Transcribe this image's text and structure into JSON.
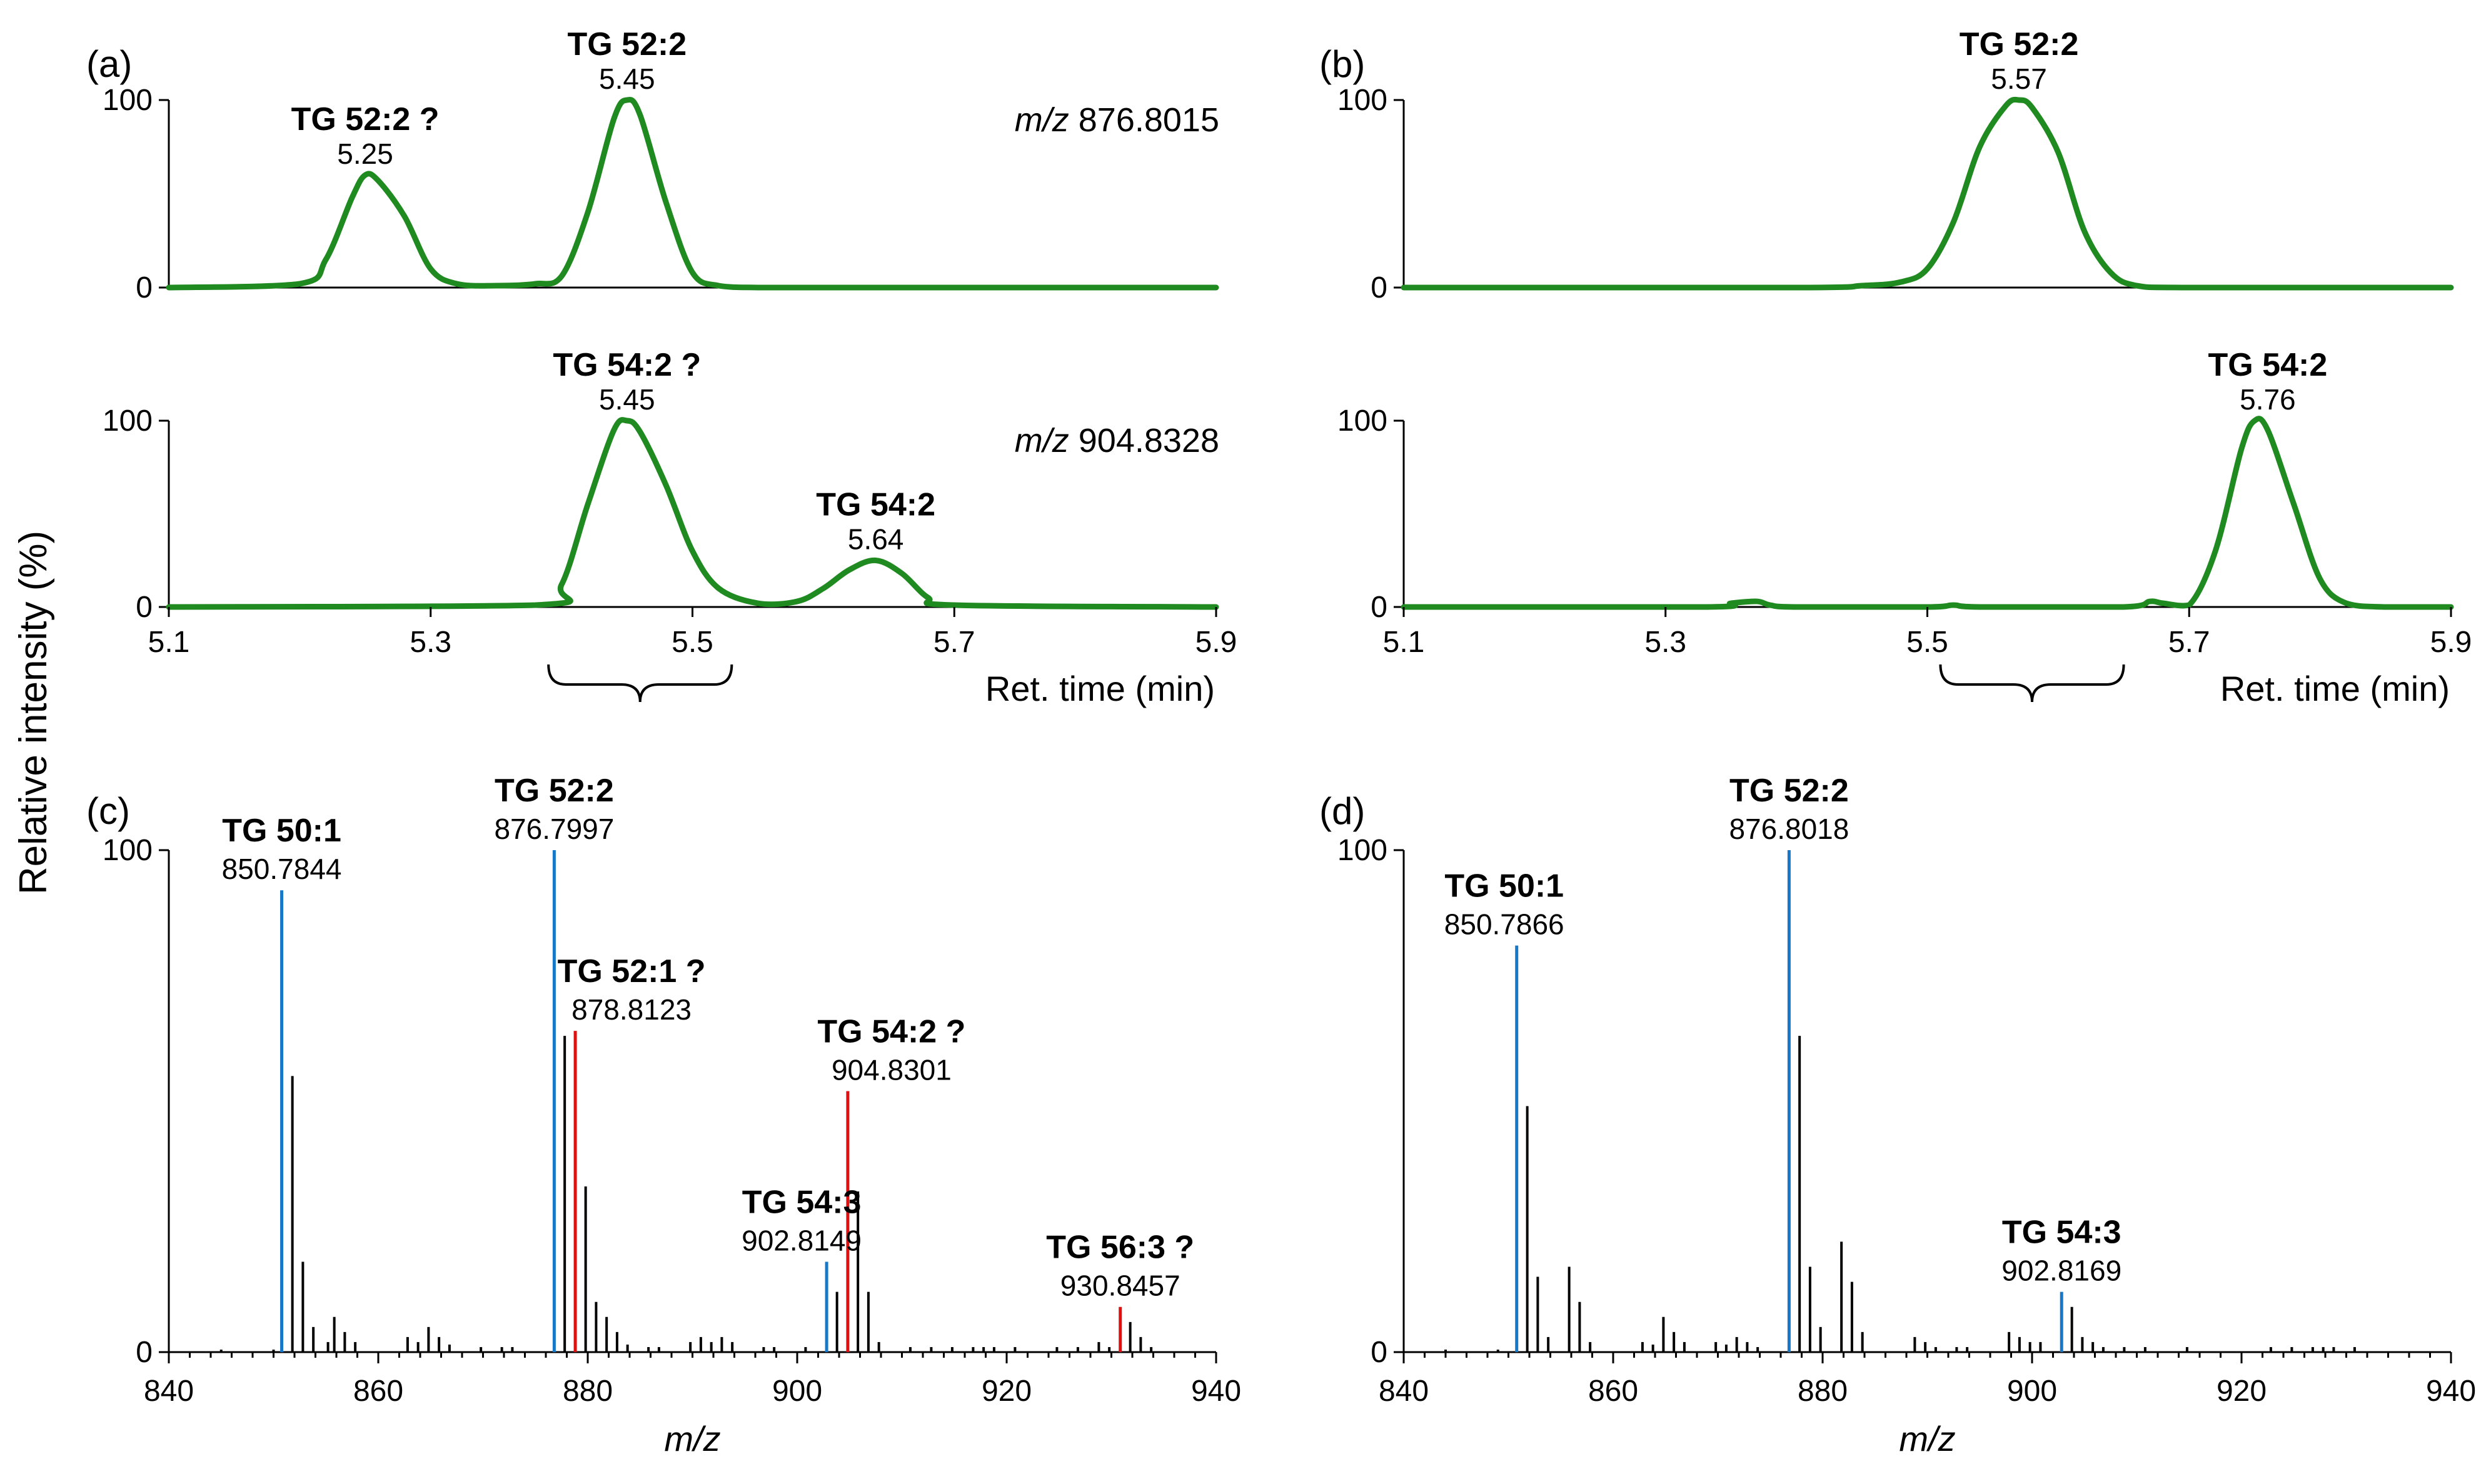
{
  "ylabel": "Relative intensity (%)",
  "colors": {
    "trace": "#1f8a1f",
    "confirmed": "#1878c8",
    "questionable": "#e01010",
    "other": "#000000"
  },
  "chart_data": [
    {
      "panel": "(a)",
      "type": "line",
      "subplots": [
        {
          "mz_label": "876.8015",
          "x": [
            5.1,
            5.2,
            5.22,
            5.24,
            5.25,
            5.26,
            5.28,
            5.3,
            5.32,
            5.35,
            5.38,
            5.4,
            5.42,
            5.44,
            5.45,
            5.46,
            5.48,
            5.5,
            5.52,
            5.55,
            5.6,
            5.9
          ],
          "y": [
            0,
            2,
            15,
            48,
            60,
            57,
            38,
            10,
            2,
            1,
            2,
            6,
            40,
            90,
            100,
            92,
            45,
            8,
            1,
            0,
            0,
            0
          ],
          "ylim": [
            0,
            100
          ],
          "yticks": [
            "0",
            "100"
          ],
          "peaks": [
            {
              "rt": 5.25,
              "height": 60,
              "lipid": "TG 52:2 ?",
              "rt_label": "5.25",
              "status": "questionable"
            },
            {
              "rt": 5.45,
              "height": 100,
              "lipid": "TG 52:2",
              "rt_label": "5.45",
              "status": "confirmed"
            }
          ]
        },
        {
          "mz_label": "904.8328",
          "x": [
            5.1,
            5.38,
            5.4,
            5.42,
            5.44,
            5.45,
            5.46,
            5.48,
            5.5,
            5.52,
            5.55,
            5.58,
            5.6,
            5.62,
            5.64,
            5.66,
            5.68,
            5.7,
            5.9
          ],
          "y": [
            0,
            1,
            12,
            55,
            95,
            100,
            94,
            65,
            30,
            10,
            2,
            3,
            10,
            20,
            25,
            18,
            5,
            1,
            0
          ],
          "ylim": [
            0,
            100
          ],
          "yticks": [
            "0",
            "100"
          ],
          "peaks": [
            {
              "rt": 5.45,
              "height": 100,
              "lipid": "TG 54:2 ?",
              "rt_label": "5.45",
              "status": "questionable"
            },
            {
              "rt": 5.64,
              "height": 25,
              "lipid": "TG 54:2",
              "rt_label": "5.64",
              "status": "confirmed"
            }
          ]
        }
      ],
      "xlim": [
        5.1,
        5.9
      ],
      "xticks": [
        "5.1",
        "5.3",
        "5.5",
        "5.7",
        "5.9"
      ],
      "xlabel": "Ret. time (min)"
    },
    {
      "panel": "(b)",
      "type": "line",
      "subplots": [
        {
          "x": [
            5.1,
            5.4,
            5.45,
            5.48,
            5.5,
            5.52,
            5.54,
            5.56,
            5.57,
            5.58,
            5.6,
            5.62,
            5.64,
            5.66,
            5.7,
            5.9
          ],
          "y": [
            0,
            0,
            1,
            3,
            10,
            35,
            75,
            97,
            100,
            96,
            72,
            30,
            8,
            1,
            0,
            0
          ],
          "ylim": [
            0,
            100
          ],
          "yticks": [
            "0",
            "100"
          ],
          "peaks": [
            {
              "rt": 5.57,
              "height": 100,
              "lipid": "TG 52:2",
              "rt_label": "5.57",
              "status": "confirmed"
            }
          ]
        },
        {
          "x": [
            5.1,
            5.33,
            5.35,
            5.37,
            5.38,
            5.4,
            5.5,
            5.52,
            5.54,
            5.65,
            5.67,
            5.68,
            5.7,
            5.72,
            5.74,
            5.75,
            5.76,
            5.78,
            5.8,
            5.82,
            5.85,
            5.9
          ],
          "y": [
            0,
            0,
            2,
            3,
            1,
            0,
            0,
            1,
            0,
            0,
            3,
            2,
            1,
            30,
            85,
            100,
            95,
            55,
            15,
            2,
            0,
            0
          ],
          "ylim": [
            0,
            100
          ],
          "yticks": [
            "0",
            "100"
          ],
          "peaks": [
            {
              "rt": 5.76,
              "height": 100,
              "lipid": "TG 54:2",
              "rt_label": "5.76",
              "status": "confirmed"
            }
          ]
        }
      ],
      "xlim": [
        5.1,
        5.9
      ],
      "xticks": [
        "5.1",
        "5.3",
        "5.5",
        "5.7",
        "5.9"
      ],
      "xlabel": "Ret. time (min)"
    },
    {
      "panel": "(c)",
      "type": "bar",
      "xlim": [
        840,
        940
      ],
      "ylim": [
        0,
        100
      ],
      "xticks": [
        "840",
        "860",
        "880",
        "900",
        "920",
        "940"
      ],
      "yticks": [
        "0",
        "100"
      ],
      "xlabel": "m/z",
      "bars": [
        [
          845,
          0.5
        ],
        [
          850,
          0.5
        ],
        [
          850.78,
          92,
          "c"
        ],
        [
          851.8,
          55
        ],
        [
          852.8,
          18
        ],
        [
          853.8,
          5
        ],
        [
          855.2,
          2
        ],
        [
          855.8,
          7
        ],
        [
          856.8,
          4
        ],
        [
          857.8,
          2
        ],
        [
          862.8,
          3
        ],
        [
          863.8,
          2
        ],
        [
          864.8,
          5
        ],
        [
          865.8,
          3
        ],
        [
          866.8,
          1.5
        ],
        [
          869.8,
          1
        ],
        [
          871.8,
          1
        ],
        [
          872.8,
          1
        ],
        [
          876.8,
          100,
          "c"
        ],
        [
          877.8,
          63
        ],
        [
          878.81,
          64,
          "q"
        ],
        [
          879.8,
          33
        ],
        [
          880.8,
          10
        ],
        [
          881.8,
          7
        ],
        [
          882.8,
          4
        ],
        [
          883.8,
          1.5
        ],
        [
          885.8,
          1
        ],
        [
          886.8,
          1
        ],
        [
          889.8,
          2
        ],
        [
          890.8,
          3
        ],
        [
          891.8,
          2
        ],
        [
          892.8,
          3
        ],
        [
          893.8,
          2
        ],
        [
          896.8,
          1
        ],
        [
          897.8,
          1
        ],
        [
          900.8,
          1
        ],
        [
          902.81,
          18,
          "c"
        ],
        [
          903.8,
          12
        ],
        [
          904.83,
          52,
          "q"
        ],
        [
          905.8,
          32
        ],
        [
          906.8,
          12
        ],
        [
          907.8,
          2
        ],
        [
          910.8,
          1
        ],
        [
          912.8,
          1
        ],
        [
          914.8,
          1
        ],
        [
          916.8,
          1
        ],
        [
          917.8,
          1
        ],
        [
          918.8,
          1
        ],
        [
          920.8,
          1
        ],
        [
          924.8,
          1
        ],
        [
          926.8,
          1
        ],
        [
          928.8,
          2
        ],
        [
          929.8,
          1
        ],
        [
          930.85,
          9,
          "q"
        ],
        [
          931.8,
          6
        ],
        [
          932.8,
          3
        ],
        [
          933.8,
          1
        ]
      ],
      "labels": [
        {
          "mz": 850.78,
          "height": 92,
          "lipid": "TG 50:1",
          "mz_label": "850.7844",
          "status": "confirmed"
        },
        {
          "mz": 876.8,
          "height": 100,
          "lipid": "TG 52:2",
          "mz_label": "876.7997",
          "status": "confirmed"
        },
        {
          "mz": 878.81,
          "height": 64,
          "lipid": "TG 52:1 ?",
          "mz_label": "878.8123",
          "status": "questionable"
        },
        {
          "mz": 904.83,
          "height": 52,
          "lipid": "TG 54:2 ?",
          "mz_label": "904.8301",
          "status": "questionable"
        },
        {
          "mz": 902.81,
          "height": 18,
          "lipid": "TG 54:3",
          "mz_label": "902.8149",
          "status": "confirmed"
        },
        {
          "mz": 930.85,
          "height": 9,
          "lipid": "TG 56:3 ?",
          "mz_label": "930.8457",
          "status": "questionable"
        }
      ]
    },
    {
      "panel": "(d)",
      "type": "bar",
      "xlim": [
        840,
        940
      ],
      "ylim": [
        0,
        100
      ],
      "xticks": [
        "840",
        "860",
        "880",
        "900",
        "920",
        "940"
      ],
      "yticks": [
        "0",
        "100"
      ],
      "xlabel": "m/z",
      "bars": [
        [
          844,
          0.5
        ],
        [
          849,
          0.5
        ],
        [
          850.79,
          81,
          "c"
        ],
        [
          851.8,
          49
        ],
        [
          852.8,
          15
        ],
        [
          853.8,
          3
        ],
        [
          855.8,
          17
        ],
        [
          856.8,
          10
        ],
        [
          857.8,
          2
        ],
        [
          862.8,
          2
        ],
        [
          863.8,
          1.5
        ],
        [
          864.8,
          7
        ],
        [
          865.8,
          4
        ],
        [
          866.8,
          2
        ],
        [
          869.8,
          2
        ],
        [
          870.8,
          1.5
        ],
        [
          871.8,
          3
        ],
        [
          872.8,
          2
        ],
        [
          873.8,
          1
        ],
        [
          876.8,
          100,
          "c"
        ],
        [
          877.8,
          63
        ],
        [
          878.8,
          17
        ],
        [
          879.8,
          5
        ],
        [
          881.8,
          22
        ],
        [
          882.8,
          14
        ],
        [
          883.8,
          4
        ],
        [
          888.8,
          3
        ],
        [
          889.8,
          2
        ],
        [
          890.8,
          1
        ],
        [
          892.8,
          1
        ],
        [
          893.8,
          1
        ],
        [
          897.8,
          4
        ],
        [
          898.8,
          3
        ],
        [
          899.8,
          2
        ],
        [
          900.8,
          2
        ],
        [
          902.82,
          12,
          "c"
        ],
        [
          903.8,
          9
        ],
        [
          904.8,
          3
        ],
        [
          905.8,
          2
        ],
        [
          906.8,
          1
        ],
        [
          908.8,
          1
        ],
        [
          910.8,
          1
        ],
        [
          914.8,
          1
        ],
        [
          922.8,
          1
        ],
        [
          924.8,
          1
        ],
        [
          926.8,
          1
        ],
        [
          927.8,
          1
        ],
        [
          928.8,
          1
        ],
        [
          930.8,
          1
        ]
      ],
      "labels": [
        {
          "mz": 850.79,
          "height": 81,
          "lipid": "TG 50:1",
          "mz_label": "850.7866",
          "status": "confirmed"
        },
        {
          "mz": 876.8,
          "height": 100,
          "lipid": "TG 52:2",
          "mz_label": "876.8018",
          "status": "confirmed"
        },
        {
          "mz": 902.82,
          "height": 12,
          "lipid": "TG 54:3",
          "mz_label": "902.8169",
          "status": "confirmed"
        }
      ]
    }
  ]
}
